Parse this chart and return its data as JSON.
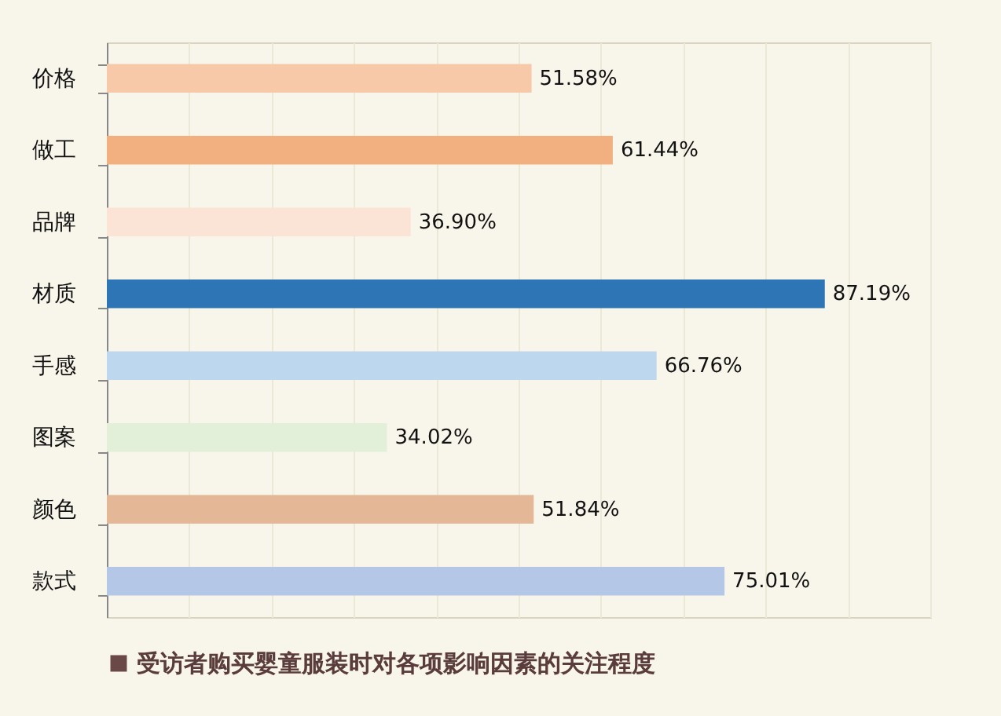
{
  "chart_data": {
    "type": "bar",
    "orientation": "horizontal",
    "categories": [
      "价格",
      "做工",
      "品牌",
      "材质",
      "手感",
      "图案",
      "颜色",
      "款式"
    ],
    "series": [
      {
        "name": "受访者购买婴童服装时对各项影响因素的关注程度",
        "color": "#6b4848",
        "values": [
          51.58,
          61.44,
          36.9,
          87.19,
          66.76,
          34.02,
          51.84,
          75.01
        ],
        "colors": [
          "#f7c9a8",
          "#f2b080",
          "#fbe4d6",
          "#2e75b6",
          "#bdd7ee",
          "#e2efd9",
          "#e4b896",
          "#b4c7e7"
        ],
        "value_labels": [
          "51.58%",
          "61.44%",
          "36.90%",
          "87.19%",
          "66.76%",
          "34.02%",
          "51.84%",
          "75.01%"
        ]
      }
    ],
    "xlim": [
      0,
      100
    ],
    "xticks": [
      {
        "value": 0,
        "label": null
      },
      {
        "value": 10,
        "label": null
      },
      {
        "value": 20,
        "label": null
      },
      {
        "value": 30,
        "label": null
      },
      {
        "value": 40,
        "label": null
      },
      {
        "value": 50,
        "label": null
      },
      {
        "value": 60,
        "label": null
      },
      {
        "value": 70,
        "label": null
      },
      {
        "value": 80,
        "label": null
      },
      {
        "value": 90,
        "label": null
      },
      {
        "value": 100,
        "label": null
      }
    ],
    "grid": "x",
    "tick_labels": "y",
    "legend": "bottom"
  }
}
